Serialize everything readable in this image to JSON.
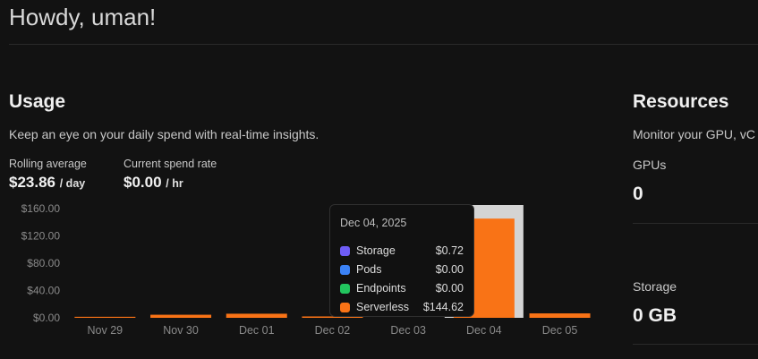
{
  "header": {
    "greeting": "Howdy, uman!"
  },
  "usage": {
    "title": "Usage",
    "subtitle": "Keep an eye on your daily spend with real-time insights.",
    "rolling_average": {
      "label": "Rolling average",
      "value": "$23.86",
      "unit": "/ day"
    },
    "current_spend": {
      "label": "Current spend rate",
      "value": "$0.00",
      "unit": "/ hr"
    }
  },
  "chart_data": {
    "type": "bar",
    "categories": [
      "Nov 29",
      "Nov 30",
      "Dec 01",
      "Dec 02",
      "Dec 03",
      "Dec 04",
      "Dec 05"
    ],
    "y_ticks": [
      "$0.00",
      "$40.00",
      "$80.00",
      "$120.00",
      "$160.00"
    ],
    "ylim": [
      0,
      160
    ],
    "values": [
      1.5,
      4.5,
      6,
      2,
      0,
      145.34,
      6.5
    ],
    "bar_color": "#f97316",
    "highlight_index": 5,
    "highlight_color": "#d4d4d4"
  },
  "tooltip": {
    "date": "Dec 04, 2025",
    "rows": [
      {
        "name": "Storage",
        "value": "$0.72",
        "color": "#6e5cf6"
      },
      {
        "name": "Pods",
        "value": "$0.00",
        "color": "#3b82f6"
      },
      {
        "name": "Endpoints",
        "value": "$0.00",
        "color": "#22c55e"
      },
      {
        "name": "Serverless",
        "value": "$144.62",
        "color": "#f97316"
      }
    ]
  },
  "resources": {
    "title": "Resources",
    "subtitle": "Monitor your GPU, vC",
    "gpus": {
      "label": "GPUs",
      "value": "0"
    },
    "storage": {
      "label": "Storage",
      "value": "0 GB"
    }
  }
}
